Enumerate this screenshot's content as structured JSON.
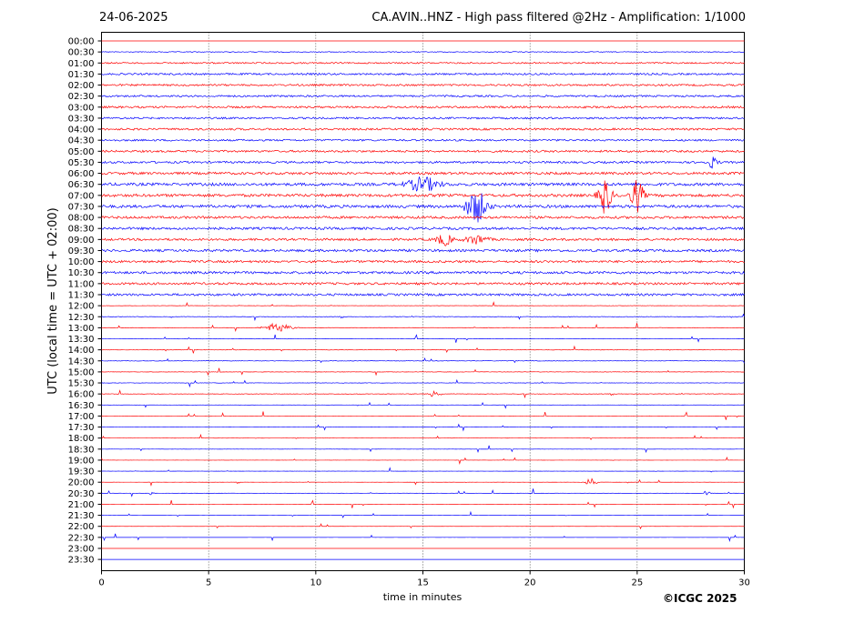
{
  "header": {
    "date": "24-06-2025",
    "title": "CA.AVIN..HNZ - High pass filtered @2Hz - Amplification: 1/1000"
  },
  "footer": {
    "copyright": "©ICGC 2025"
  },
  "chart_data": {
    "type": "line",
    "title": "CA.AVIN..HNZ - High pass filtered @2Hz - Amplification: 1/1000",
    "xlabel": "time in minutes",
    "ylabel": "UTC (local time = UTC + 02:00)",
    "xlim": [
      0,
      30
    ],
    "xticks": [
      0,
      5,
      10,
      15,
      20,
      25,
      30
    ],
    "grid": "vertical dotted lines at 5-minute ticks",
    "colors": {
      "red": "#ff0000",
      "blue": "#0000ff"
    },
    "rows": [
      {
        "label": "00:00",
        "color": "red",
        "level": 0.0,
        "events": []
      },
      {
        "label": "00:30",
        "color": "blue",
        "level": 0.2,
        "events": []
      },
      {
        "label": "01:00",
        "color": "red",
        "level": 0.35,
        "events": []
      },
      {
        "label": "01:30",
        "color": "blue",
        "level": 0.45,
        "events": []
      },
      {
        "label": "02:00",
        "color": "red",
        "level": 0.45,
        "events": []
      },
      {
        "label": "02:30",
        "color": "blue",
        "level": 0.45,
        "events": []
      },
      {
        "label": "03:00",
        "color": "red",
        "level": 0.5,
        "events": []
      },
      {
        "label": "03:30",
        "color": "blue",
        "level": 0.45,
        "events": []
      },
      {
        "label": "04:00",
        "color": "red",
        "level": 0.5,
        "events": []
      },
      {
        "label": "04:30",
        "color": "blue",
        "level": 0.45,
        "events": []
      },
      {
        "label": "05:00",
        "color": "red",
        "level": 0.5,
        "events": []
      },
      {
        "label": "05:30",
        "color": "blue",
        "level": 0.5,
        "events": [
          {
            "t": 28.5,
            "amp": 1.2,
            "dur": 0.5
          }
        ]
      },
      {
        "label": "06:00",
        "color": "red",
        "level": 0.6,
        "events": []
      },
      {
        "label": "06:30",
        "color": "blue",
        "level": 0.7,
        "events": [
          {
            "t": 15.0,
            "amp": 1.5,
            "dur": 1.5
          }
        ]
      },
      {
        "label": "07:00",
        "color": "red",
        "level": 0.7,
        "events": [
          {
            "t": 23.5,
            "amp": 4.0,
            "dur": 0.6
          },
          {
            "t": 25.0,
            "amp": 3.5,
            "dur": 0.6
          }
        ]
      },
      {
        "label": "07:30",
        "color": "blue",
        "level": 0.7,
        "events": [
          {
            "t": 17.5,
            "amp": 3.5,
            "dur": 1.0
          }
        ]
      },
      {
        "label": "08:00",
        "color": "red",
        "level": 0.6,
        "events": []
      },
      {
        "label": "08:30",
        "color": "blue",
        "level": 0.6,
        "events": []
      },
      {
        "label": "09:00",
        "color": "red",
        "level": 0.55,
        "events": [
          {
            "t": 16.0,
            "amp": 1.2,
            "dur": 0.8
          },
          {
            "t": 17.5,
            "amp": 1.0,
            "dur": 1.0
          }
        ]
      },
      {
        "label": "09:30",
        "color": "blue",
        "level": 0.6,
        "events": []
      },
      {
        "label": "10:00",
        "color": "red",
        "level": 0.55,
        "events": []
      },
      {
        "label": "10:30",
        "color": "blue",
        "level": 0.6,
        "events": []
      },
      {
        "label": "11:00",
        "color": "red",
        "level": 0.55,
        "events": []
      },
      {
        "label": "11:30",
        "color": "blue",
        "level": 0.55,
        "events": []
      },
      {
        "label": "12:00",
        "color": "red",
        "level": 0.08,
        "events": []
      },
      {
        "label": "12:30",
        "color": "blue",
        "level": 0.12,
        "events": []
      },
      {
        "label": "13:00",
        "color": "red",
        "level": 0.1,
        "events": [
          {
            "t": 8.2,
            "amp": 1.0,
            "dur": 1.3
          }
        ]
      },
      {
        "label": "13:30",
        "color": "blue",
        "level": 0.1,
        "events": []
      },
      {
        "label": "14:00",
        "color": "red",
        "level": 0.1,
        "events": []
      },
      {
        "label": "14:30",
        "color": "blue",
        "level": 0.12,
        "events": []
      },
      {
        "label": "15:00",
        "color": "red",
        "level": 0.1,
        "events": []
      },
      {
        "label": "15:30",
        "color": "blue",
        "level": 0.1,
        "events": []
      },
      {
        "label": "16:00",
        "color": "red",
        "level": 0.12,
        "events": [
          {
            "t": 15.5,
            "amp": 0.7,
            "dur": 0.5
          }
        ]
      },
      {
        "label": "16:30",
        "color": "blue",
        "level": 0.03,
        "events": []
      },
      {
        "label": "17:00",
        "color": "red",
        "level": 0.02,
        "events": []
      },
      {
        "label": "17:30",
        "color": "blue",
        "level": 0.03,
        "events": []
      },
      {
        "label": "18:00",
        "color": "red",
        "level": 0.02,
        "events": []
      },
      {
        "label": "18:30",
        "color": "blue",
        "level": 0.03,
        "events": []
      },
      {
        "label": "19:00",
        "color": "red",
        "level": 0.02,
        "events": []
      },
      {
        "label": "19:30",
        "color": "blue",
        "level": 0.04,
        "events": []
      },
      {
        "label": "20:00",
        "color": "red",
        "level": 0.03,
        "events": [
          {
            "t": 22.8,
            "amp": 0.9,
            "dur": 0.6
          }
        ]
      },
      {
        "label": "20:30",
        "color": "blue",
        "level": 0.04,
        "events": [
          {
            "t": 2.3,
            "amp": 0.4,
            "dur": 0.3
          },
          {
            "t": 28.3,
            "amp": 0.4,
            "dur": 0.3
          }
        ]
      },
      {
        "label": "21:00",
        "color": "red",
        "level": 0.02,
        "events": []
      },
      {
        "label": "21:30",
        "color": "blue",
        "level": 0.02,
        "events": []
      },
      {
        "label": "22:00",
        "color": "red",
        "level": 0.03,
        "events": []
      },
      {
        "label": "22:30",
        "color": "blue",
        "level": 0.02,
        "events": []
      },
      {
        "label": "23:00",
        "color": "red",
        "level": 0.0,
        "events": []
      },
      {
        "label": "23:30",
        "color": "blue",
        "level": 0.0,
        "events": []
      }
    ]
  }
}
